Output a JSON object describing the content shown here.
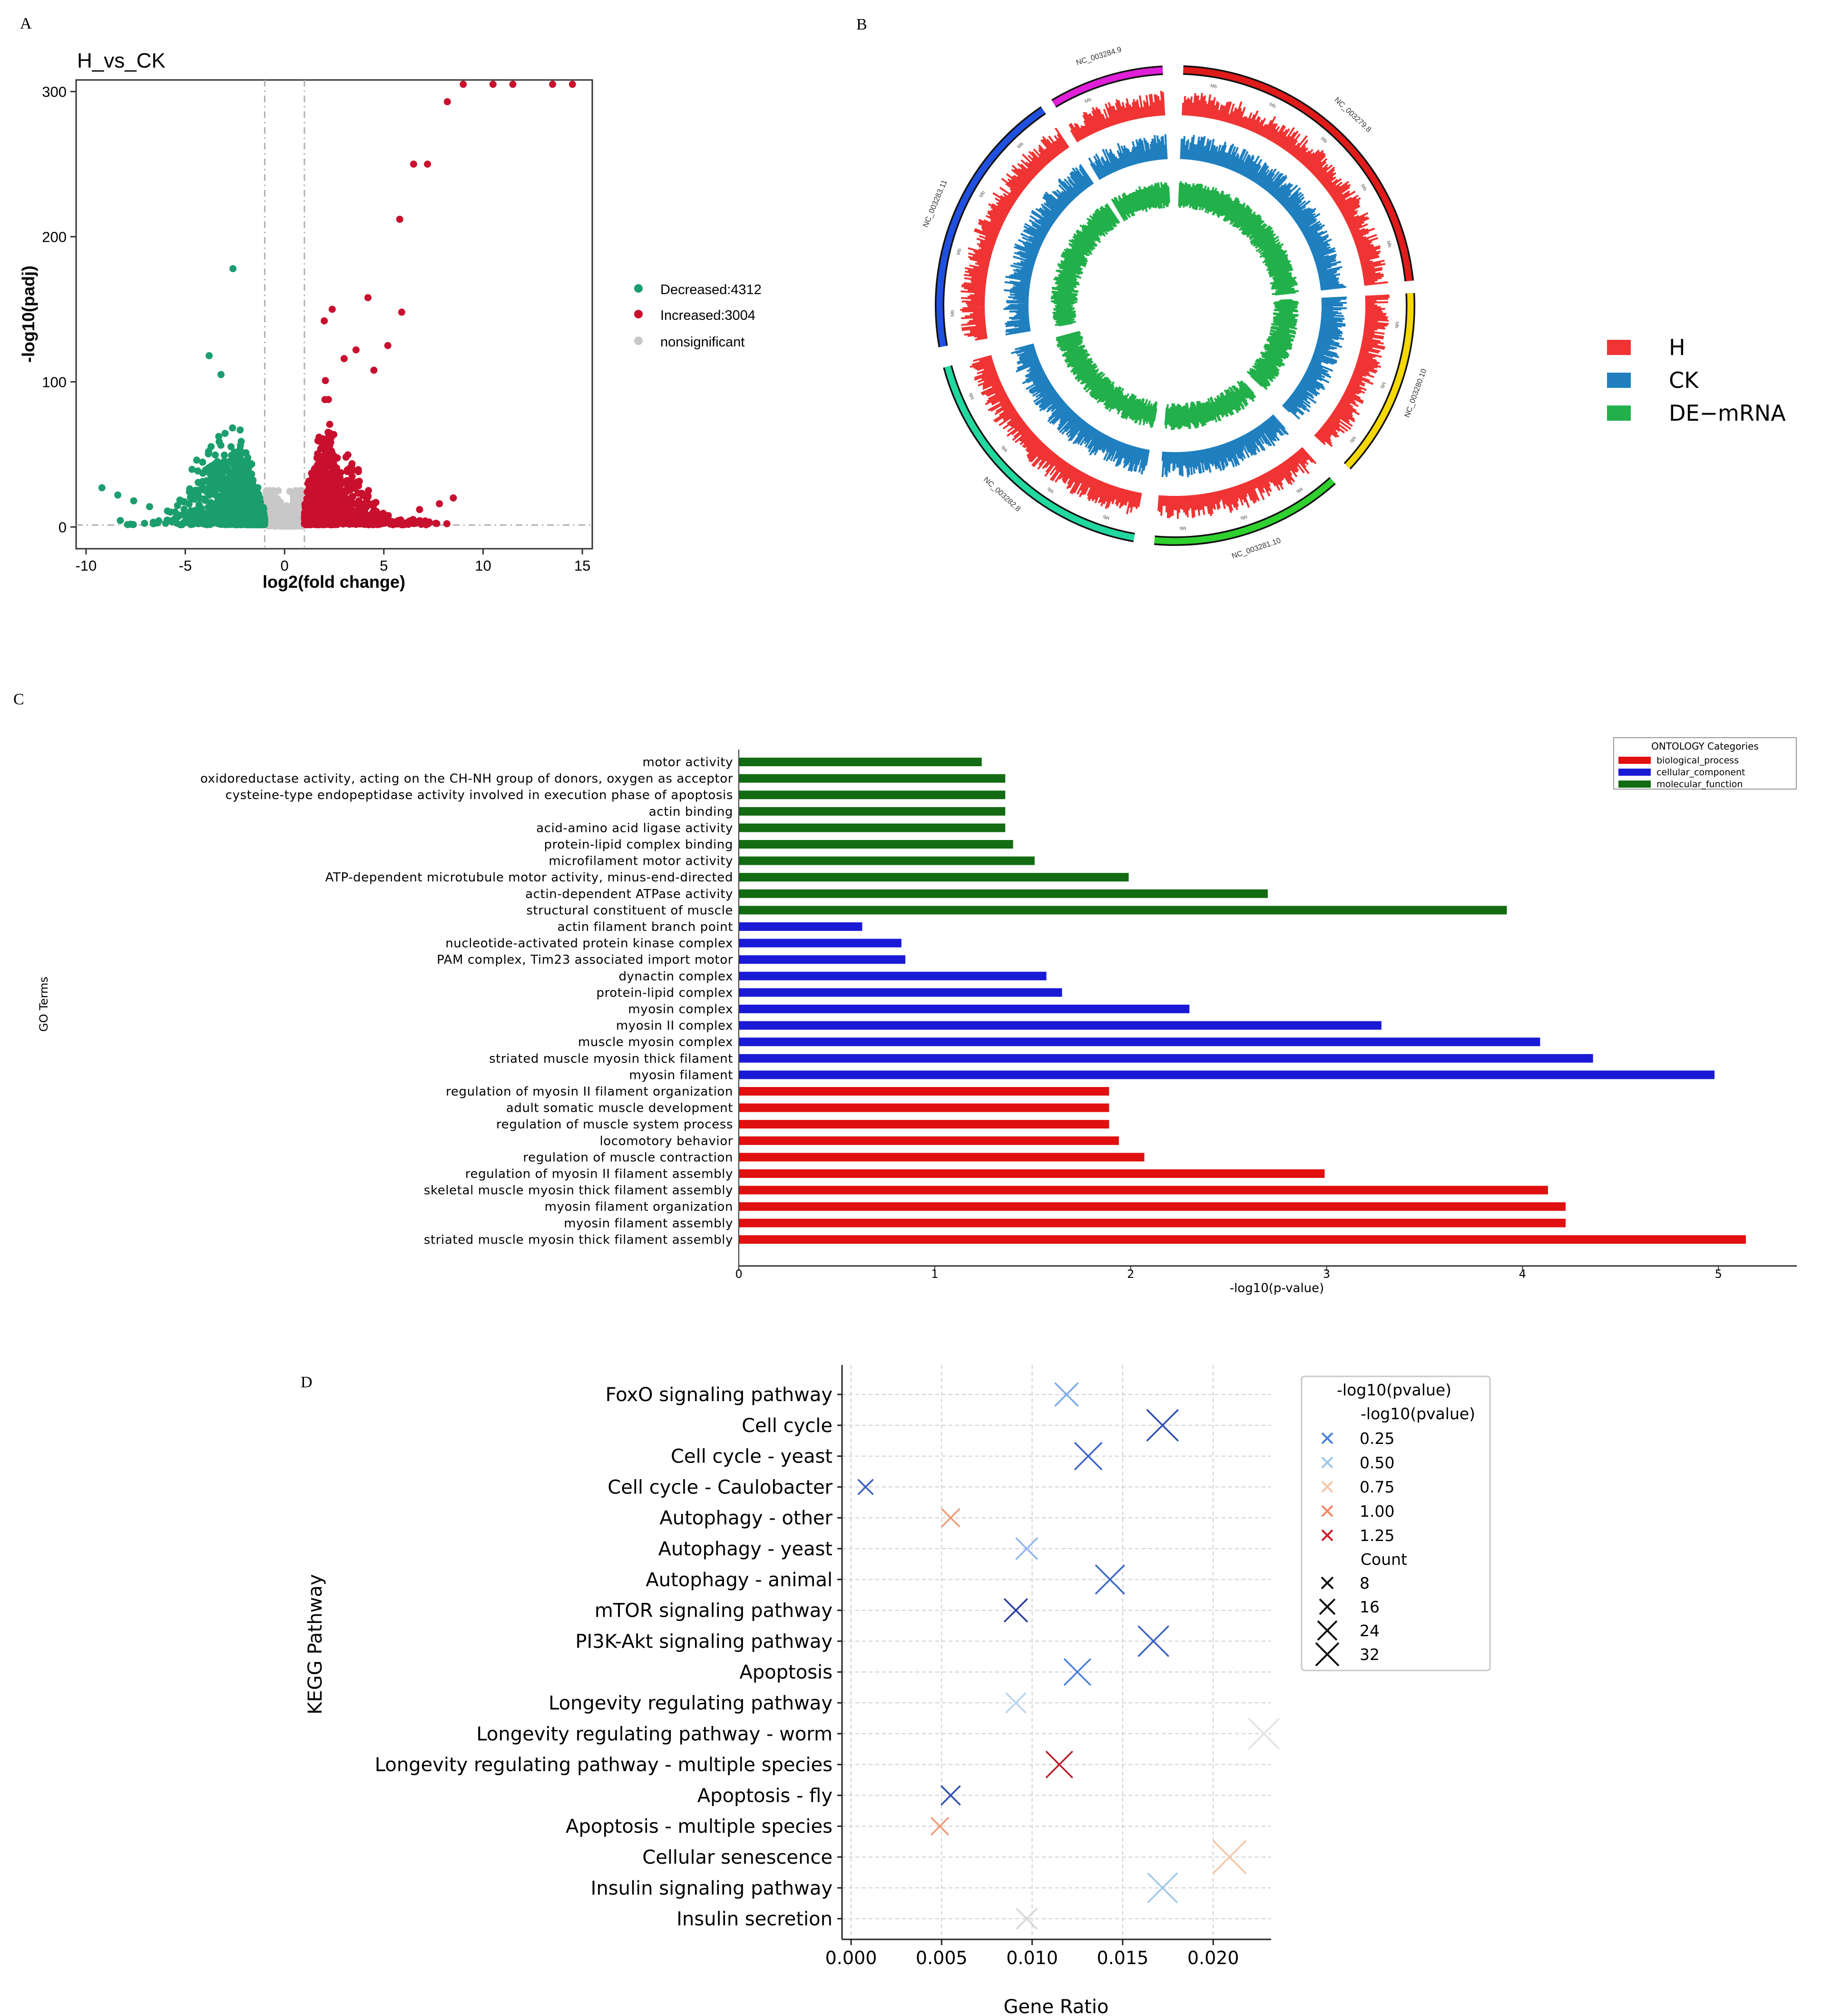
{
  "panels": {
    "a": "A",
    "b": "B",
    "c": "C",
    "d": "D"
  },
  "colors": {
    "decreased": "#1b9e6e",
    "increased": "#c8102e",
    "nonsignificant": "#c8c8c8",
    "H": "#f03434",
    "CK": "#1f7fbf",
    "DE": "#22b04a",
    "bp": "#e01010",
    "cc": "#1a1ad6",
    "mf": "#136b13"
  },
  "chart_data": [
    {
      "id": "volcano",
      "type": "scatter",
      "title": "H_vs_CK",
      "xlabel": "log2(fold change)",
      "ylabel": "-log10(padj)",
      "xlim": [
        -10.5,
        15.5
      ],
      "ylim": [
        -15,
        308
      ],
      "xticks": [
        -10,
        -5,
        0,
        5,
        10,
        15
      ],
      "yticks": [
        0,
        100,
        200,
        300
      ],
      "vlines": [
        -1,
        1
      ],
      "hline": 1.3,
      "legend": [
        {
          "label": "Decreased:4312",
          "key": "decreased"
        },
        {
          "label": "Increased:3004",
          "key": "increased"
        },
        {
          "label": "nonsignificant",
          "key": "nonsignificant"
        }
      ],
      "highlight_points": {
        "increased": [
          [
            9.0,
            305
          ],
          [
            10.5,
            305
          ],
          [
            13.5,
            305
          ],
          [
            14.5,
            305
          ],
          [
            11.5,
            305
          ],
          [
            8.2,
            293
          ],
          [
            6.5,
            250
          ],
          [
            7.2,
            250
          ],
          [
            5.8,
            212
          ],
          [
            4.2,
            158
          ],
          [
            5.9,
            148
          ],
          [
            2.4,
            150
          ],
          [
            5.2,
            125
          ],
          [
            2.0,
            142
          ],
          [
            3.6,
            122
          ],
          [
            3.0,
            116
          ],
          [
            4.5,
            108
          ],
          [
            8.5,
            20
          ],
          [
            7.8,
            16
          ],
          [
            6.8,
            12
          ]
        ],
        "decreased": [
          [
            -2.6,
            178
          ],
          [
            -3.8,
            118
          ],
          [
            -3.2,
            105
          ],
          [
            -9.2,
            27
          ],
          [
            -8.4,
            22
          ],
          [
            -7.6,
            18
          ],
          [
            -6.8,
            14
          ],
          [
            -5.9,
            11
          ]
        ]
      }
    },
    {
      "id": "circos",
      "type": "circos",
      "legend": [
        {
          "label": "H",
          "key": "H"
        },
        {
          "label": "CK",
          "key": "CK"
        },
        {
          "label": "DE−mRNA",
          "key": "DE"
        }
      ],
      "chromosomes": [
        "NC_003279.8",
        "NC_003280.10",
        "NC_003281.10",
        "NC_003282.8",
        "NC_003283.11",
        "NC_003284.9"
      ],
      "chromosome_colors": [
        "#e01b1b",
        "#f5d800",
        "#2fd12f",
        "#20d8a0",
        "#2050e0",
        "#e020d8"
      ]
    },
    {
      "id": "go",
      "type": "bar",
      "orientation": "horizontal",
      "xlabel": "-log10(p-value)",
      "ylabel": "GO Terms",
      "xlim": [
        0,
        5.4
      ],
      "xticks": [
        0,
        1,
        2,
        3,
        4,
        5
      ],
      "legend_title": "ONTOLOGY Categories",
      "legend": [
        {
          "label": "biological_process",
          "key": "bp"
        },
        {
          "label": "cellular_component",
          "key": "cc"
        },
        {
          "label": "molecular_function",
          "key": "mf"
        }
      ],
      "categories": [
        "motor activity",
        "oxidoreductase activity, acting on the CH-NH group of donors, oxygen as acceptor",
        "cysteine-type endopeptidase activity involved in execution phase of apoptosis",
        "actin binding",
        "acid-amino acid ligase activity",
        "protein-lipid complex binding",
        "microfilament motor activity",
        "ATP-dependent microtubule motor activity, minus-end-directed",
        "actin-dependent ATPase activity",
        "structural constituent of muscle",
        "actin filament branch point",
        "nucleotide-activated protein kinase complex",
        "PAM complex, Tim23 associated import motor",
        "dynactin complex",
        "protein-lipid complex",
        "myosin complex",
        "myosin II complex",
        "muscle myosin complex",
        "striated muscle myosin thick filament",
        "myosin filament",
        "regulation of myosin II filament organization",
        "adult somatic muscle development",
        "regulation of muscle system process",
        "locomotory behavior",
        "regulation of muscle contraction",
        "regulation of myosin II filament assembly",
        "skeletal muscle myosin thick filament assembly",
        "myosin filament organization",
        "myosin filament assembly",
        "striated muscle myosin thick filament assembly"
      ],
      "values": [
        1.24,
        1.36,
        1.36,
        1.36,
        1.36,
        1.4,
        1.51,
        1.99,
        2.7,
        3.92,
        0.63,
        0.83,
        0.85,
        1.57,
        1.65,
        2.3,
        3.28,
        4.09,
        4.36,
        4.98,
        1.89,
        1.89,
        1.89,
        1.94,
        2.07,
        2.99,
        4.13,
        4.22,
        4.22,
        5.14
      ],
      "groups": [
        "mf",
        "mf",
        "mf",
        "mf",
        "mf",
        "mf",
        "mf",
        "mf",
        "mf",
        "mf",
        "cc",
        "cc",
        "cc",
        "cc",
        "cc",
        "cc",
        "cc",
        "cc",
        "cc",
        "cc",
        "bp",
        "bp",
        "bp",
        "bp",
        "bp",
        "bp",
        "bp",
        "bp",
        "bp",
        "bp"
      ]
    },
    {
      "id": "kegg",
      "type": "scatter",
      "xlabel": "Gene Ratio",
      "ylabel": "KEGG Pathway",
      "xlim": [
        -0.0005,
        0.0232
      ],
      "xticks": [
        0.0,
        0.005,
        0.01,
        0.015,
        0.02
      ],
      "xtick_labels": [
        "0.000",
        "0.005",
        "0.010",
        "0.015",
        "0.020"
      ],
      "legend": {
        "title_top": "-log10(pvalue)",
        "title_color": "-log10(pvalue)",
        "color_entries": [
          {
            "label": "0.25",
            "color": "#4a7fd8"
          },
          {
            "label": "0.50",
            "color": "#9cc8ea"
          },
          {
            "label": "0.75",
            "color": "#f3c6a8"
          },
          {
            "label": "1.00",
            "color": "#ef8660"
          },
          {
            "label": "1.25",
            "color": "#c81f2a"
          }
        ],
        "title_size": "Count",
        "size_entries": [
          {
            "label": "8",
            "count": 8
          },
          {
            "label": "16",
            "count": 16
          },
          {
            "label": "24",
            "count": 24
          },
          {
            "label": "32",
            "count": 32
          }
        ]
      },
      "categories": [
        "FoxO signaling pathway",
        "Cell cycle",
        "Cell cycle - yeast",
        "Cell cycle - Caulobacter",
        "Autophagy - other",
        "Autophagy - yeast",
        "Autophagy - animal",
        "mTOR signaling pathway",
        "PI3K-Akt signaling pathway",
        "Apoptosis",
        "Longevity regulating pathway",
        "Longevity regulating pathway - worm",
        "Longevity regulating pathway - multiple species",
        "Apoptosis - fly",
        "Apoptosis - multiple species",
        "Cellular senescence",
        "Insulin signaling pathway",
        "Insulin secretion"
      ],
      "points": [
        {
          "x": 0.0119,
          "count": 17,
          "color": "#7aa8e6"
        },
        {
          "x": 0.0172,
          "count": 27,
          "color": "#2e4fb0"
        },
        {
          "x": 0.0131,
          "count": 22,
          "color": "#3a62c6"
        },
        {
          "x": 0.0008,
          "count": 7,
          "color": "#3a5fc4"
        },
        {
          "x": 0.0055,
          "count": 11,
          "color": "#ef9a76"
        },
        {
          "x": 0.0097,
          "count": 15,
          "color": "#8fb6ec"
        },
        {
          "x": 0.0143,
          "count": 24,
          "color": "#3d68c8"
        },
        {
          "x": 0.0091,
          "count": 17,
          "color": "#2a3d9a"
        },
        {
          "x": 0.0167,
          "count": 26,
          "color": "#3a62c6"
        },
        {
          "x": 0.0125,
          "count": 21,
          "color": "#4a7fd8"
        },
        {
          "x": 0.0091,
          "count": 13,
          "color": "#b7d3ee"
        },
        {
          "x": 0.0228,
          "count": 26,
          "color": "#e2e2e2"
        },
        {
          "x": 0.0115,
          "count": 21,
          "color": "#b81c2c"
        },
        {
          "x": 0.0055,
          "count": 12,
          "color": "#2e4fb0"
        },
        {
          "x": 0.0049,
          "count": 10,
          "color": "#ef9a76"
        },
        {
          "x": 0.0209,
          "count": 29,
          "color": "#f3c6a8"
        },
        {
          "x": 0.0172,
          "count": 25,
          "color": "#9cc8ea"
        },
        {
          "x": 0.0097,
          "count": 14,
          "color": "#d6d6d6"
        }
      ]
    }
  ]
}
